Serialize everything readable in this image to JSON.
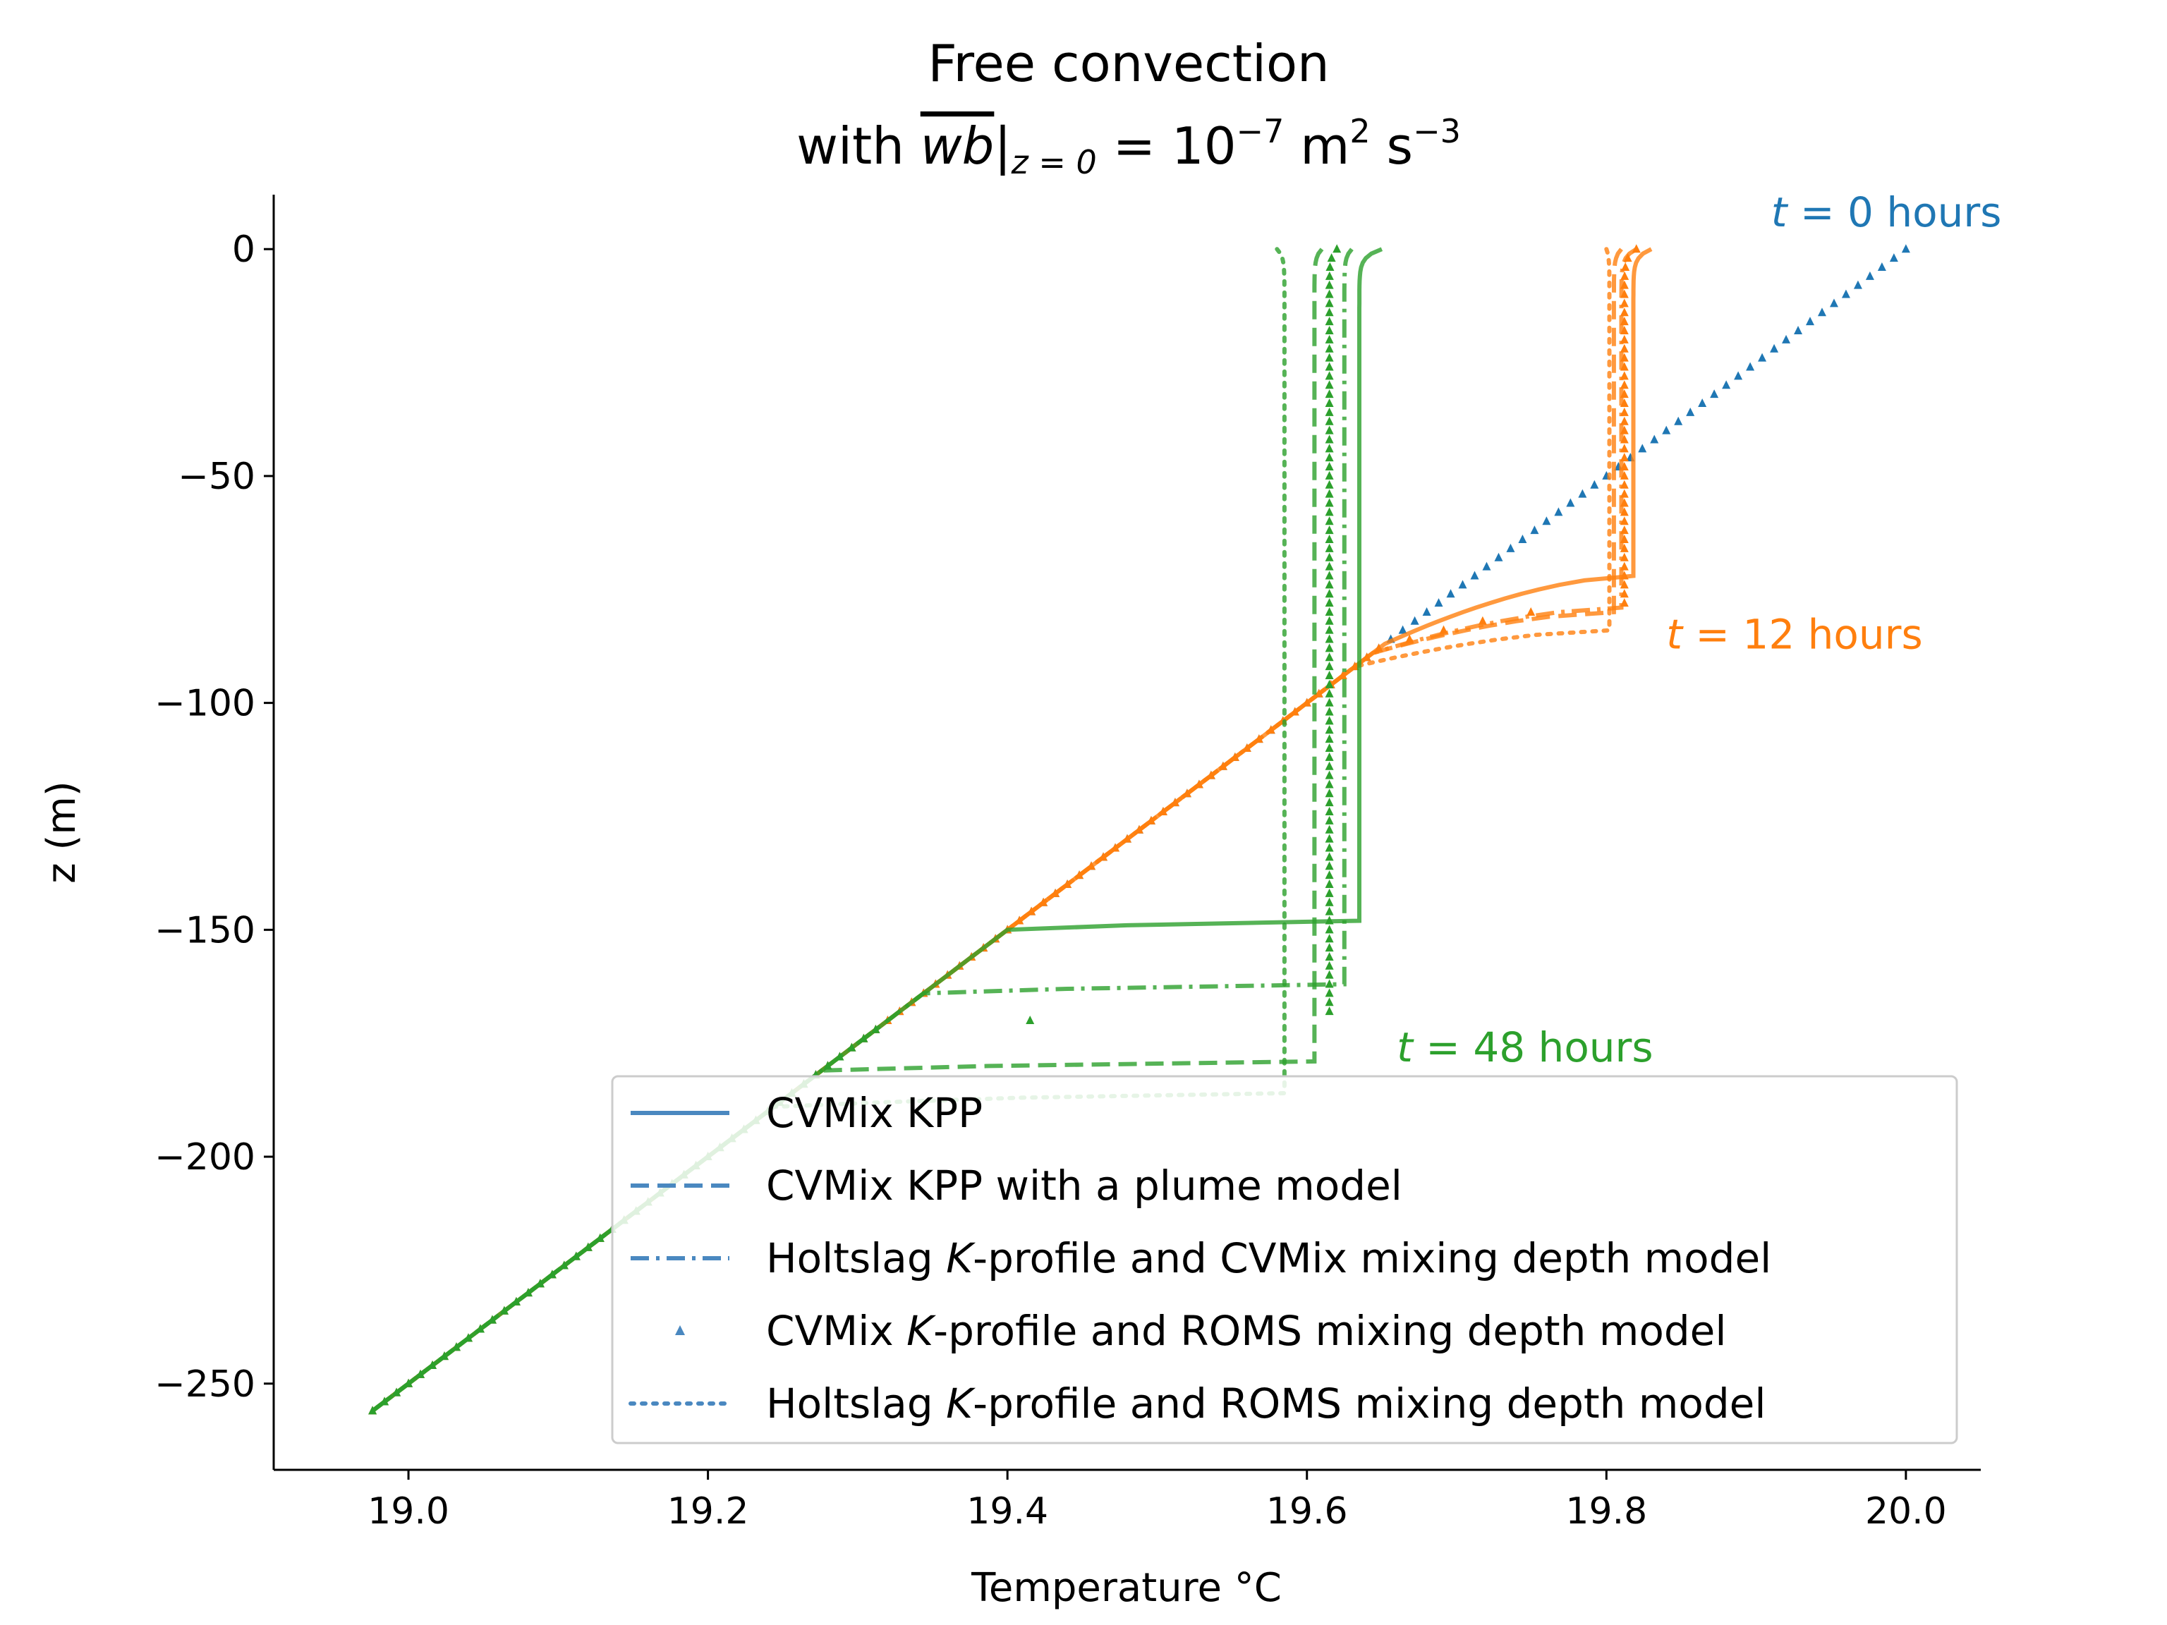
{
  "chart_data": {
    "type": "line",
    "title": {
      "line1": "Free convection",
      "line2_prefix": "with ",
      "line2_symbol": "wb",
      "line2_subscript": "z = 0",
      "line2_value": " = 10",
      "line2_exp1": "−7",
      "line2_units": " m",
      "line2_exp2": "2",
      "line2_units2": " s",
      "line2_exp3": "−3"
    },
    "xlabel": "Temperature  °C",
    "ylabel": "z (m)",
    "xlim": [
      18.91,
      20.05
    ],
    "ylim": [
      -269,
      12
    ],
    "xticks": [
      19.0,
      19.2,
      19.4,
      19.6,
      19.8,
      20.0
    ],
    "xtick_labels": [
      "19.0",
      "19.2",
      "19.4",
      "19.6",
      "19.8",
      "20.0"
    ],
    "yticks": [
      0,
      -50,
      -100,
      -150,
      -200,
      -250
    ],
    "ytick_labels": [
      "0",
      "−50",
      "−100",
      "−150",
      "−200",
      "−250"
    ],
    "grid": false,
    "legend_position": "lower-right",
    "colors": {
      "t0": "#1f77b4",
      "t12": "#ff7f0e",
      "t48": "#2ca02c",
      "legend": "#4a88c0"
    },
    "legend": [
      {
        "style": "solid",
        "label_parts": [
          "CVMix KPP"
        ]
      },
      {
        "style": "dashed",
        "label_parts": [
          "CVMix KPP with a plume model"
        ]
      },
      {
        "style": "dashdot",
        "label_parts": [
          "Holtslag ",
          "K",
          "-profile and CVMix mixing depth model"
        ]
      },
      {
        "style": "triangles",
        "label_parts": [
          "CVMix ",
          "K",
          "-profile and ROMS mixing depth model"
        ]
      },
      {
        "style": "dotted",
        "label_parts": [
          "Holtslag ",
          "K",
          "-profile and ROMS mixing depth model"
        ]
      }
    ],
    "annotations": [
      {
        "var": "t",
        "text": " = 0 hours",
        "x": 19.91,
        "y": 5,
        "color": "#1f77b4"
      },
      {
        "var": "t",
        "text": " = 12 hours",
        "x": 19.84,
        "y": -88,
        "color": "#ff7f0e"
      },
      {
        "var": "t",
        "text": " = 48 hours",
        "x": 19.66,
        "y": -179,
        "color": "#2ca02c"
      }
    ],
    "background_gradient": {
      "T0": 20.0,
      "slope_C_per_m": 0.004,
      "z_bottom": -256
    },
    "series": [
      {
        "time": "0 hours",
        "model": "all models",
        "style": "triangles",
        "surface_T": 20.0,
        "mixed_T": 20.0,
        "h": 0,
        "h_base": 0
      },
      {
        "time": "12 hours",
        "model": "CVMix KPP",
        "style": "solid",
        "surface_T": 19.83,
        "mixed_T": 19.818,
        "h": 72,
        "h_base": 87
      },
      {
        "time": "12 hours",
        "model": "CVMix KPP with a plume model",
        "style": "dashed",
        "surface_T": 19.81,
        "mixed_T": 19.805,
        "h": 80,
        "h_base": 89
      },
      {
        "time": "12 hours",
        "model": "Holtslag K-profile and CVMix mixing depth model",
        "style": "dashdot",
        "surface_T": 19.82,
        "mixed_T": 19.81,
        "h": 79,
        "h_base": 89
      },
      {
        "time": "12 hours",
        "model": "CVMix K-profile and ROMS mixing depth model",
        "style": "triangles",
        "surface_T": 19.82,
        "mixed_T": 19.812,
        "h": 78,
        "h_base": 88
      },
      {
        "time": "12 hours",
        "model": "Holtslag K-profile and ROMS mixing depth model",
        "style": "dotted",
        "surface_T": 19.8,
        "mixed_T": 19.802,
        "h": 84,
        "h_base": 92
      },
      {
        "time": "48 hours",
        "model": "CVMix KPP",
        "style": "solid",
        "surface_T": 19.65,
        "mixed_T": 19.635,
        "h": 148,
        "h_base": 150
      },
      {
        "time": "48 hours",
        "model": "CVMix KPP with a plume model",
        "style": "dashed",
        "surface_T": 19.61,
        "mixed_T": 19.605,
        "h": 179,
        "h_base": 181
      },
      {
        "time": "48 hours",
        "model": "Holtslag K-profile and CVMix mixing depth model",
        "style": "dashdot",
        "surface_T": 19.63,
        "mixed_T": 19.625,
        "h": 162,
        "h_base": 164
      },
      {
        "time": "48 hours",
        "model": "CVMix K-profile and ROMS mixing depth model",
        "style": "triangles",
        "surface_T": 19.62,
        "mixed_T": 19.615,
        "h": 168,
        "h_base": 172
      },
      {
        "time": "48 hours",
        "model": "Holtslag K-profile and ROMS mixing depth model",
        "style": "dotted",
        "surface_T": 19.58,
        "mixed_T": 19.585,
        "h": 186,
        "h_base": 189
      }
    ]
  }
}
